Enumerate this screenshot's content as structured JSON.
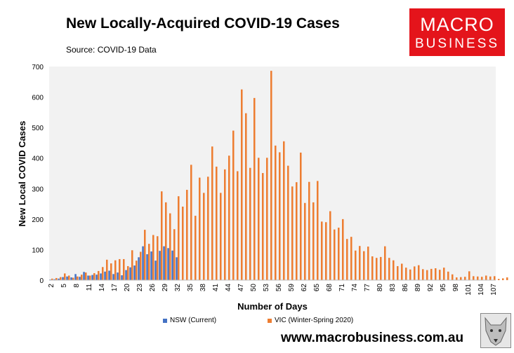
{
  "header": {
    "title": "New Locally-Acquired COVID-19 Cases",
    "source": "Source: COVID-19 Data"
  },
  "logo": {
    "line1": "MACRO",
    "line2": "BUSINESS"
  },
  "footer": {
    "website": "www.macrobusiness.com.au"
  },
  "colors": {
    "nsw": "#4472c4",
    "vic": "#ed7d31",
    "plot_bg": "#f2f2f2",
    "logo_bg": "#e4141b"
  },
  "chart_data": {
    "type": "bar",
    "title": "New Locally-Acquired COVID-19 Cases",
    "xlabel": "Number of Days",
    "ylabel": "New Local COVID Cases",
    "ylim": [
      0,
      700
    ],
    "yticks": [
      0,
      100,
      200,
      300,
      400,
      500,
      600,
      700
    ],
    "xticks": [
      2,
      5,
      8,
      11,
      14,
      17,
      20,
      23,
      26,
      29,
      32,
      35,
      38,
      41,
      44,
      47,
      50,
      53,
      56,
      59,
      62,
      65,
      68,
      71,
      74,
      77,
      80,
      83,
      86,
      89,
      92,
      95,
      98,
      101,
      104,
      107
    ],
    "x_start": 2,
    "legend_position": "bottom",
    "grid": false,
    "series": [
      {
        "name": "NSW (Current)",
        "values": [
          2,
          3,
          5,
          10,
          12,
          9,
          20,
          11,
          27,
          15,
          17,
          18,
          22,
          28,
          31,
          20,
          25,
          16,
          33,
          42,
          48,
          75,
          111,
          85,
          94,
          64,
          96,
          111,
          105,
          97,
          75
        ]
      },
      {
        "name": "VIC (Winter-Spring 2020)",
        "values": [
          5,
          7,
          10,
          22,
          15,
          8,
          12,
          18,
          25,
          15,
          23,
          30,
          43,
          67,
          55,
          65,
          69,
          69,
          46,
          98,
          64,
          93,
          165,
          119,
          148,
          144,
          291,
          255,
          219,
          167,
          275,
          241,
          296,
          378,
          211,
          336,
          286,
          339,
          438,
          372,
          286,
          363,
          408,
          490,
          357,
          625,
          547,
          368,
          597,
          401,
          351,
          401,
          686,
          441,
          419,
          455,
          375,
          307,
          321,
          418,
          253,
          322,
          255,
          325,
          192,
          190,
          226,
          166,
          172,
          200,
          135,
          142,
          97,
          112,
          95,
          110,
          78,
          73,
          76,
          111,
          73,
          65,
          46,
          54,
          41,
          35,
          45,
          49,
          36,
          33,
          37,
          39,
          34,
          41,
          28,
          19,
          9,
          10,
          11,
          29,
          13,
          12,
          11,
          15,
          12,
          13,
          4,
          6,
          9
        ]
      }
    ]
  }
}
